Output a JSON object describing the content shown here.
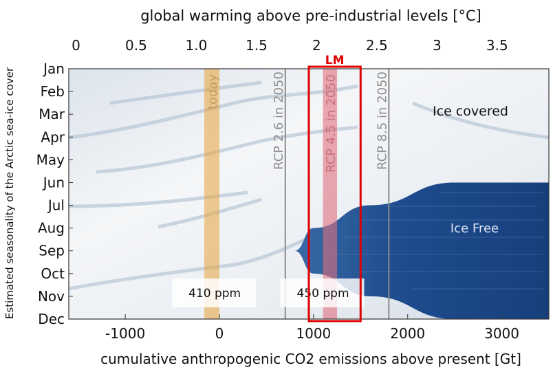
{
  "chart_data": {
    "type": "area",
    "title": "",
    "top_axis": {
      "label": "global warming above pre-industrial levels [°C]",
      "ticks": [
        0,
        0.5,
        1.0,
        1.5,
        2,
        2.5,
        3,
        3.5
      ],
      "tick_labels": [
        "0",
        "0.5",
        "1.0",
        "1.5",
        "2",
        "2.5",
        "3",
        "3.5"
      ],
      "range": [
        -0.06,
        3.93
      ]
    },
    "x_axis": {
      "label": "cumulative anthropogenic CO2 emissions above present [Gt]",
      "range": [
        -1600,
        3500
      ],
      "ticks": [
        -1000,
        0,
        1000,
        2000,
        3000
      ],
      "tick_labels": [
        "-1000",
        "0",
        "1000",
        "2000",
        "3000"
      ]
    },
    "y_axis": {
      "label": "Estimated seasonality of the Arctic sea-ice cover",
      "categories": [
        "Jan",
        "Feb",
        "Mar",
        "Apr",
        "May",
        "Jun",
        "Jul",
        "Aug",
        "Sep",
        "Oct",
        "Nov",
        "Dec"
      ]
    },
    "regions": [
      {
        "label": "Ice covered",
        "color": "#eef1f5"
      },
      {
        "label": "Ice Free",
        "color": "#1f4f8f"
      }
    ],
    "ice_free_boundary": [
      {
        "x": 3500,
        "month": "Jun"
      },
      {
        "x": 2500,
        "month": "Jun"
      },
      {
        "x": 1600,
        "month": "Jul"
      },
      {
        "x": 1000,
        "month": "Aug"
      },
      {
        "x": 800,
        "month": "Sep"
      },
      {
        "x": 1000,
        "month": "Oct"
      },
      {
        "x": 1600,
        "month": "Nov"
      },
      {
        "x": 2500,
        "month": "Dec"
      },
      {
        "x": 3500,
        "month": "Dec"
      }
    ],
    "bands": [
      {
        "label": "today",
        "x_from": -160,
        "x_to": 0,
        "color": "#e8a94a"
      },
      {
        "label": "RCP 4.5 in 2050",
        "x_from": 1100,
        "x_to": 1250,
        "color": "#e0707e"
      }
    ],
    "reference_lines": [
      {
        "label": "RCP 2.6 in 2050",
        "x": 700,
        "color": "#8a8a8a"
      },
      {
        "label": "RCP 8.5 in 2050",
        "x": 1800,
        "color": "#8a8a8a"
      }
    ],
    "concentration_labels": [
      {
        "text": "410 ppm",
        "x": -50
      },
      {
        "text": "450 ppm",
        "x": 1100
      }
    ],
    "highlight_box": {
      "label": "LM",
      "x_from": 950,
      "x_to": 1500,
      "color": "#e00000"
    },
    "grid": false
  }
}
